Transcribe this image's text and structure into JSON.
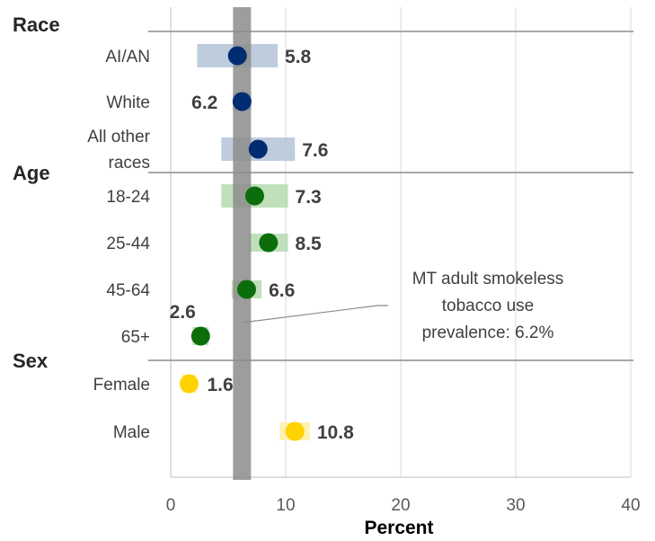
{
  "chart_data": {
    "type": "scatter",
    "xlabel": "Percent",
    "xlim": [
      0,
      40
    ],
    "xticks": [
      0,
      10,
      20,
      30,
      40
    ],
    "reference": {
      "value": 6.2,
      "label_lines": [
        "MT adult smokeless",
        "tobacco use",
        "prevalence: 6.2%"
      ]
    },
    "groups": [
      {
        "name": "Race",
        "color": "#002D72",
        "ci_color": "#B8C6DA",
        "rows": [
          {
            "label_lines": [
              "AI/AN"
            ],
            "value": 5.8,
            "value_label": "5.8",
            "ci": [
              2.3,
              9.3
            ]
          },
          {
            "label_lines": [
              "White"
            ],
            "value": 6.2,
            "value_label": "6.2",
            "ci": [
              5.4,
              7.0
            ]
          },
          {
            "label_lines": [
              "All other",
              "races"
            ],
            "value": 7.6,
            "value_label": "7.6",
            "ci": [
              4.4,
              10.8
            ]
          }
        ]
      },
      {
        "name": "Age",
        "color": "#0B6E0B",
        "ci_color": "#B9DDB4",
        "rows": [
          {
            "label_lines": [
              "18-24"
            ],
            "value": 7.3,
            "value_label": "7.3",
            "ci": [
              4.4,
              10.2
            ]
          },
          {
            "label_lines": [
              "25-44"
            ],
            "value": 8.5,
            "value_label": "8.5",
            "ci": [
              6.8,
              10.2
            ]
          },
          {
            "label_lines": [
              "45-64"
            ],
            "value": 6.6,
            "value_label": "6.6",
            "ci": [
              5.3,
              7.9
            ]
          },
          {
            "label_lines": [
              "65+"
            ],
            "value": 2.6,
            "value_label": "2.6",
            "ci": [
              1.9,
              3.3
            ]
          }
        ]
      },
      {
        "name": "Sex",
        "color": "#FFD200",
        "ci_color": "#FFEFA6",
        "rows": [
          {
            "label_lines": [
              "Female"
            ],
            "value": 1.6,
            "value_label": "1.6",
            "ci": [
              1.0,
              2.2
            ]
          },
          {
            "label_lines": [
              "Male"
            ],
            "value": 10.8,
            "value_label": "10.8",
            "ci": [
              9.5,
              12.1
            ]
          }
        ]
      }
    ]
  }
}
